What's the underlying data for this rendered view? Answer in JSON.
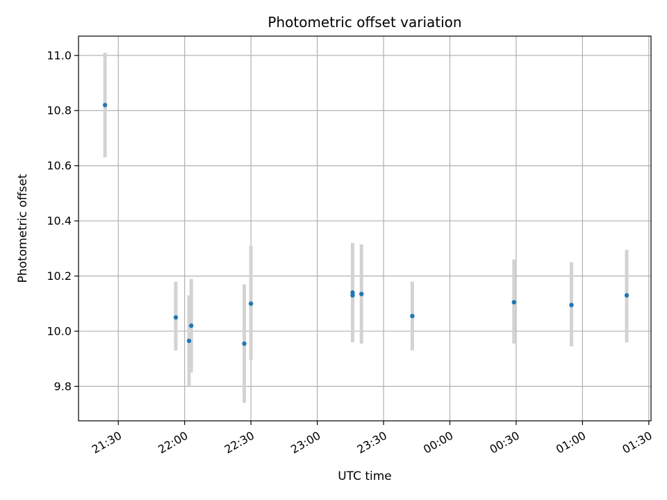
{
  "chart_data": {
    "type": "scatter",
    "title": "Photometric offset variation",
    "xlabel": "UTC time",
    "ylabel": "Photometric offset",
    "x_ticks": [
      "21:30",
      "22:00",
      "22:30",
      "23:00",
      "23:30",
      "00:00",
      "00:30",
      "01:00",
      "01:30"
    ],
    "y_ticks": [
      "9.8",
      "10.0",
      "10.2",
      "10.4",
      "10.6",
      "10.8",
      "11.0"
    ],
    "y_tick_values": [
      9.8,
      10.0,
      10.2,
      10.4,
      10.6,
      10.8,
      11.0
    ],
    "xlim": [
      "21:12",
      "01:31"
    ],
    "ylim": [
      9.675,
      11.07
    ],
    "grid": true,
    "colors": {
      "point": "#1f77b4",
      "errorbar": "#d3d3d3",
      "grid": "#b0b0b0",
      "axis": "#000000"
    },
    "series": [
      {
        "points": [
          {
            "time": "21:24",
            "y": 10.82,
            "ylo": 10.63,
            "yhi": 11.01
          },
          {
            "time": "21:56",
            "y": 10.05,
            "ylo": 9.93,
            "yhi": 10.18
          },
          {
            "time": "22:02",
            "y": 9.965,
            "ylo": 9.8,
            "yhi": 10.13
          },
          {
            "time": "22:03",
            "y": 10.02,
            "ylo": 9.85,
            "yhi": 10.19
          },
          {
            "time": "22:27",
            "y": 9.955,
            "ylo": 9.74,
            "yhi": 10.17
          },
          {
            "time": "22:30",
            "y": 10.1,
            "ylo": 9.895,
            "yhi": 10.31
          },
          {
            "time": "23:16",
            "y": 10.14,
            "ylo": 9.96,
            "yhi": 10.32
          },
          {
            "time": "23:16",
            "y": 10.13,
            "ylo": 9.965,
            "yhi": 10.29
          },
          {
            "time": "23:20",
            "y": 10.135,
            "ylo": 9.955,
            "yhi": 10.315
          },
          {
            "time": "23:43",
            "y": 10.055,
            "ylo": 9.93,
            "yhi": 10.18
          },
          {
            "time": "00:29",
            "y": 10.105,
            "ylo": 9.955,
            "yhi": 10.26
          },
          {
            "time": "00:55",
            "y": 10.095,
            "ylo": 9.945,
            "yhi": 10.25
          },
          {
            "time": "01:20",
            "y": 10.13,
            "ylo": 9.96,
            "yhi": 10.295
          }
        ]
      }
    ]
  }
}
